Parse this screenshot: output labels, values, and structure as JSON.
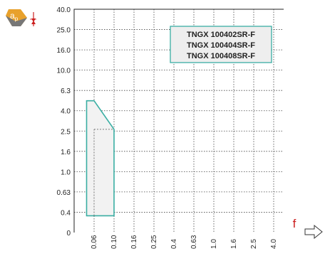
{
  "chart_data": {
    "type": "area",
    "title": "",
    "xlabel": "f",
    "ylabel": "ap",
    "x_ticks": [
      "0.06",
      "0.10",
      "0.16",
      "0.25",
      "0.4",
      "0.63",
      "1.0",
      "1.6",
      "2.5",
      "4.0"
    ],
    "y_ticks": [
      "0",
      "0.4",
      "0.63",
      "1.0",
      "1.6",
      "2.5",
      "4.0",
      "6.3",
      "10.0",
      "16.0",
      "25.0",
      "40.0"
    ],
    "grid": true,
    "legend_position": "top-right",
    "legend": [
      "TNGX 100402SR-F",
      "TNGX 100404SR-F",
      "TNGX 100408SR-F"
    ],
    "series": [
      {
        "name": "TNGX 100402SR-F",
        "polygon": [
          {
            "x": 0.045,
            "y": 0.33
          },
          {
            "x": 0.045,
            "y": 5.0
          },
          {
            "x": 0.06,
            "y": 5.0
          },
          {
            "x": 0.1,
            "y": 2.6
          },
          {
            "x": 0.1,
            "y": 0.33
          }
        ]
      }
    ],
    "inner_dashed_line": {
      "x": 0.06,
      "y_from": 0.33,
      "y_to": 2.6,
      "y_top": 2.6
    }
  },
  "icon": {
    "name": "ap-depth-icon",
    "label": "a",
    "subscript": "p"
  },
  "colors": {
    "region_stroke": "#3aaea3",
    "region_fill": "#f2f2f2",
    "legend_fill": "#eeeeee",
    "accent_red": "#cc1f1f",
    "icon_orange": "#e8a12c",
    "grid": "#444444"
  }
}
